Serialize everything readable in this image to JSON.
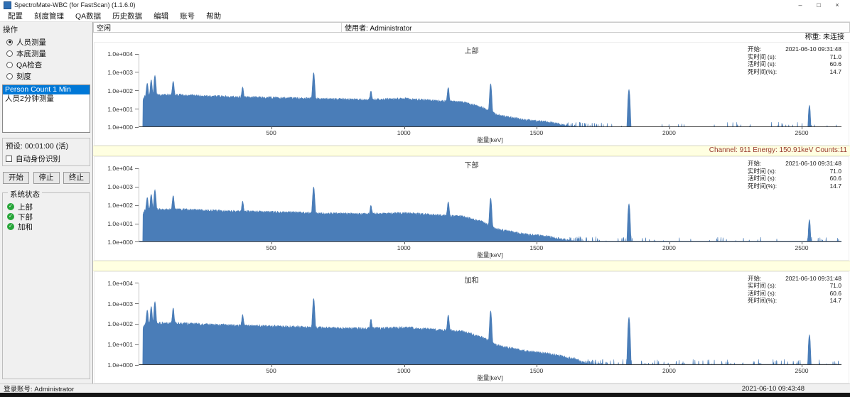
{
  "window": {
    "title": "SpectroMate-WBC (for FastScan) (1.1.6.0)",
    "controls": {
      "minimize": "–",
      "maximize": "□",
      "close": "×"
    }
  },
  "menu": {
    "items": [
      {
        "label": "配置"
      },
      {
        "label": "刻度管理"
      },
      {
        "label": "QA数据"
      },
      {
        "label": "历史数据"
      },
      {
        "label": "编辑"
      },
      {
        "label": "账号"
      },
      {
        "label": "帮助"
      }
    ]
  },
  "header": {
    "state": "空闲",
    "user": "使用者: Administrator",
    "scale_status": "称重: 未连接"
  },
  "sidebar": {
    "operation_group": {
      "title": "操作",
      "options": [
        {
          "label": "人员测量",
          "selected": true
        },
        {
          "label": "本底测量",
          "selected": false
        },
        {
          "label": "QA检查",
          "selected": false
        },
        {
          "label": "刻度",
          "selected": false
        }
      ]
    },
    "measurement_list": {
      "items": [
        {
          "label": "Person Count 1 Min",
          "selected": true
        },
        {
          "label": "人员2分钟测量",
          "selected": false
        }
      ]
    },
    "preset": "预设: 00:01:00 (活)",
    "auto_id": {
      "label": "自动身份识别",
      "checked": false
    },
    "buttons": {
      "start": "开始",
      "stop": "停止",
      "abort": "终止"
    },
    "system_status": {
      "title": "系统状态",
      "items": [
        {
          "label": "上部",
          "ok": true
        },
        {
          "label": "下部",
          "ok": true
        },
        {
          "label": "加和",
          "ok": true
        }
      ]
    }
  },
  "channel_readout": "Channel: 911 Energy: 150.91keV Counts:11",
  "statusbar": {
    "login": "登录账号: Administrator",
    "datetime": "2021-06-10 09:43:48"
  },
  "colors": {
    "spectrum_fill": "#4a7db8",
    "selection_blue": "#0078d7",
    "readout_strip_bg": "#ffffe1",
    "readout_text": "#9a3b2e",
    "status_ok_green": "#27a539"
  },
  "chart_data": [
    {
      "type": "area",
      "title": "上部",
      "xlabel": "能量[keV]",
      "ylabel": "",
      "xlim": [
        0,
        2650
      ],
      "ylim_log10": [
        0,
        4
      ],
      "yticks": [
        "1.0e+004",
        "1.0e+003",
        "1.0e+002",
        "1.0e+001",
        "1.0e+000"
      ],
      "xticks": [
        500,
        1000,
        1500,
        2000,
        2500
      ],
      "color": "#4a7db8",
      "scale": 1.0,
      "cutoff_kev": 14,
      "continuum": [
        [
          14,
          30
        ],
        [
          20,
          46
        ],
        [
          60,
          55
        ],
        [
          150,
          55
        ],
        [
          250,
          48
        ],
        [
          400,
          42
        ],
        [
          550,
          38
        ],
        [
          700,
          33
        ],
        [
          850,
          30
        ],
        [
          1000,
          34
        ],
        [
          1100,
          28
        ],
        [
          1220,
          22
        ],
        [
          1290,
          12
        ],
        [
          1350,
          4.5
        ],
        [
          1450,
          2.4
        ],
        [
          1550,
          1.7
        ],
        [
          1650,
          0.9
        ],
        [
          1800,
          0.12
        ],
        [
          2100,
          0.08
        ],
        [
          2400,
          0.08
        ],
        [
          2650,
          0.1
        ]
      ],
      "peaks": [
        [
          30,
          200
        ],
        [
          45,
          320
        ],
        [
          59,
          600
        ],
        [
          128,
          260
        ],
        [
          390,
          110
        ],
        [
          658,
          900
        ],
        [
          874,
          60
        ],
        [
          1166,
          120
        ],
        [
          1326,
          220
        ],
        [
          1848,
          110
        ],
        [
          2529,
          15
        ]
      ],
      "info": {
        "start_label": "开始:",
        "start_value": "2021-06-10 09:31:48",
        "real_label": "实时间 (s):",
        "real_value": "71.0",
        "live_label": "活时间 (s):",
        "live_value": "60.6",
        "dead_label": "死时间(%):",
        "dead_value": "14.7"
      }
    },
    {
      "type": "area",
      "title": "下部",
      "xlabel": "能量[keV]",
      "ylabel": "",
      "xlim": [
        0,
        2650
      ],
      "ylim_log10": [
        0,
        4
      ],
      "yticks": [
        "1.0e+004",
        "1.0e+003",
        "1.0e+002",
        "1.0e+001",
        "1.0e+000"
      ],
      "xticks": [
        500,
        1000,
        1500,
        2000,
        2500
      ],
      "color": "#4a7db8",
      "scale": 1.0,
      "cutoff_kev": 14,
      "continuum": [
        [
          14,
          30
        ],
        [
          20,
          46
        ],
        [
          60,
          55
        ],
        [
          150,
          55
        ],
        [
          250,
          48
        ],
        [
          400,
          42
        ],
        [
          550,
          38
        ],
        [
          700,
          33
        ],
        [
          850,
          30
        ],
        [
          1000,
          34
        ],
        [
          1100,
          28
        ],
        [
          1220,
          22
        ],
        [
          1290,
          12
        ],
        [
          1350,
          4.5
        ],
        [
          1450,
          2.4
        ],
        [
          1550,
          1.7
        ],
        [
          1650,
          0.9
        ],
        [
          1800,
          0.12
        ],
        [
          2100,
          0.08
        ],
        [
          2400,
          0.08
        ],
        [
          2650,
          0.1
        ]
      ],
      "peaks": [
        [
          30,
          200
        ],
        [
          45,
          320
        ],
        [
          59,
          600
        ],
        [
          128,
          260
        ],
        [
          390,
          110
        ],
        [
          658,
          900
        ],
        [
          874,
          60
        ],
        [
          1166,
          120
        ],
        [
          1326,
          220
        ],
        [
          1848,
          110
        ],
        [
          2529,
          15
        ]
      ],
      "info": {
        "start_label": "开始:",
        "start_value": "2021-06-10 09:31:48",
        "real_label": "实时间 (s):",
        "real_value": "71.0",
        "live_label": "活时间 (s):",
        "live_value": "60.6",
        "dead_label": "死时间(%):",
        "dead_value": "14.7"
      }
    },
    {
      "type": "area",
      "title": "加和",
      "xlabel": "能量[keV]",
      "ylabel": "",
      "xlim": [
        0,
        2650
      ],
      "ylim_log10": [
        0,
        4
      ],
      "yticks": [
        "1.0e+004",
        "1.0e+003",
        "1.0e+002",
        "1.0e+001",
        "1.0e+000"
      ],
      "xticks": [
        500,
        1000,
        1500,
        2000,
        2500
      ],
      "color": "#4a7db8",
      "scale": 1.9,
      "cutoff_kev": 14,
      "continuum": [
        [
          14,
          30
        ],
        [
          20,
          46
        ],
        [
          60,
          55
        ],
        [
          150,
          55
        ],
        [
          250,
          48
        ],
        [
          400,
          42
        ],
        [
          550,
          38
        ],
        [
          700,
          33
        ],
        [
          850,
          30
        ],
        [
          1000,
          34
        ],
        [
          1100,
          28
        ],
        [
          1220,
          22
        ],
        [
          1290,
          12
        ],
        [
          1350,
          4.5
        ],
        [
          1450,
          2.4
        ],
        [
          1550,
          1.7
        ],
        [
          1650,
          0.9
        ],
        [
          1800,
          0.12
        ],
        [
          2100,
          0.08
        ],
        [
          2400,
          0.08
        ],
        [
          2650,
          0.1
        ]
      ],
      "peaks": [
        [
          30,
          200
        ],
        [
          45,
          320
        ],
        [
          59,
          600
        ],
        [
          128,
          260
        ],
        [
          390,
          110
        ],
        [
          658,
          900
        ],
        [
          874,
          60
        ],
        [
          1166,
          120
        ],
        [
          1326,
          220
        ],
        [
          1848,
          110
        ],
        [
          2529,
          15
        ]
      ],
      "info": {
        "start_label": "开始:",
        "start_value": "2021-06-10 09:31:48",
        "real_label": "实时间 (s):",
        "real_value": "71.0",
        "live_label": "活时间 (s):",
        "live_value": "60.6",
        "dead_label": "死时间(%):",
        "dead_value": "14.7"
      }
    }
  ]
}
